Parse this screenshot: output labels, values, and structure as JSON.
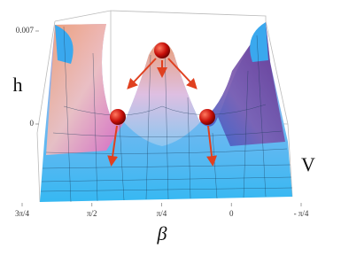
{
  "chart_data": {
    "type": "surface",
    "x_label": "β",
    "y_label": "V",
    "z_label": "h",
    "xlim": [
      2.3562,
      -0.7854
    ],
    "xticks": [
      {
        "value": 2.3562,
        "label": "3π/4"
      },
      {
        "value": 1.5708,
        "label": "π/2"
      },
      {
        "value": 0.7854,
        "label": "π/4"
      },
      0,
      {
        "value": -0.7854,
        "label": "- π/4"
      }
    ],
    "zlim": [
      0,
      0.007
    ],
    "zticks": [
      0,
      0.007
    ]
  }
}
